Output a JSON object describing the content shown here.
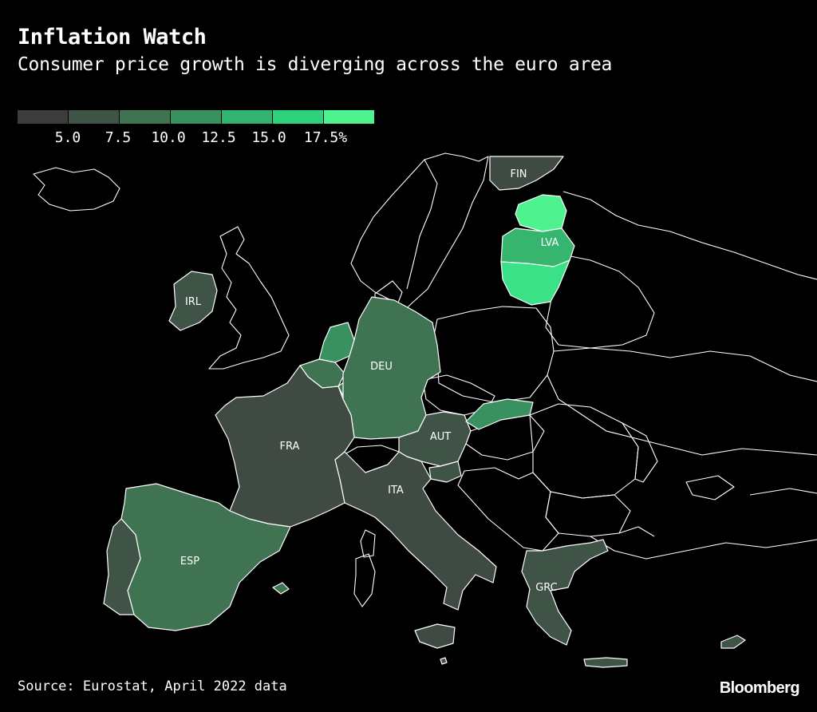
{
  "header": {
    "title": "Inflation Watch",
    "subtitle": "Consumer price growth is diverging across the euro area"
  },
  "legend": {
    "ticks": [
      "5.0",
      "7.5",
      "10.0",
      "12.5",
      "15.0",
      "17.5%"
    ],
    "bins": [
      {
        "color": "#3a3d3b"
      },
      {
        "color": "#3f5447"
      },
      {
        "color": "#3f7352"
      },
      {
        "color": "#3a9160"
      },
      {
        "color": "#32b36f"
      },
      {
        "color": "#2ed27c"
      },
      {
        "color": "#4ef28f"
      }
    ]
  },
  "map": {
    "background": "#000000",
    "border_color": "#ffffff",
    "non_euro_fill": "#000000",
    "countries": [
      {
        "code": "FIN",
        "label": "FIN",
        "color": "#3f4a43"
      },
      {
        "code": "EST",
        "label": "",
        "color": "#4ef28f"
      },
      {
        "code": "LVA",
        "label": "LVA",
        "color": "#36b56f"
      },
      {
        "code": "LTU",
        "label": "",
        "color": "#3ae186"
      },
      {
        "code": "IRL",
        "label": "IRL",
        "color": "#3f5447"
      },
      {
        "code": "NLD",
        "label": "",
        "color": "#3a9160"
      },
      {
        "code": "BEL",
        "label": "",
        "color": "#3f7352"
      },
      {
        "code": "LUX",
        "label": "",
        "color": "#3f7352"
      },
      {
        "code": "DEU",
        "label": "DEU",
        "color": "#3f7352"
      },
      {
        "code": "FRA",
        "label": "FRA",
        "color": "#3f4a43"
      },
      {
        "code": "AUT",
        "label": "AUT",
        "color": "#3f5447"
      },
      {
        "code": "SVK",
        "label": "",
        "color": "#3a9160"
      },
      {
        "code": "SVN",
        "label": "",
        "color": "#3f5447"
      },
      {
        "code": "ITA",
        "label": "ITA",
        "color": "#3f4a43"
      },
      {
        "code": "ESP",
        "label": "ESP",
        "color": "#3f7352"
      },
      {
        "code": "PRT",
        "label": "",
        "color": "#3f5447"
      },
      {
        "code": "GRC",
        "label": "GRC",
        "color": "#3f5447"
      },
      {
        "code": "CYP",
        "label": "",
        "color": "#3f5447"
      },
      {
        "code": "MLT",
        "label": "",
        "color": "#3f5447"
      }
    ]
  },
  "footer": {
    "source": "Source: Eurostat, April 2022 data",
    "brand": "Bloomberg"
  }
}
